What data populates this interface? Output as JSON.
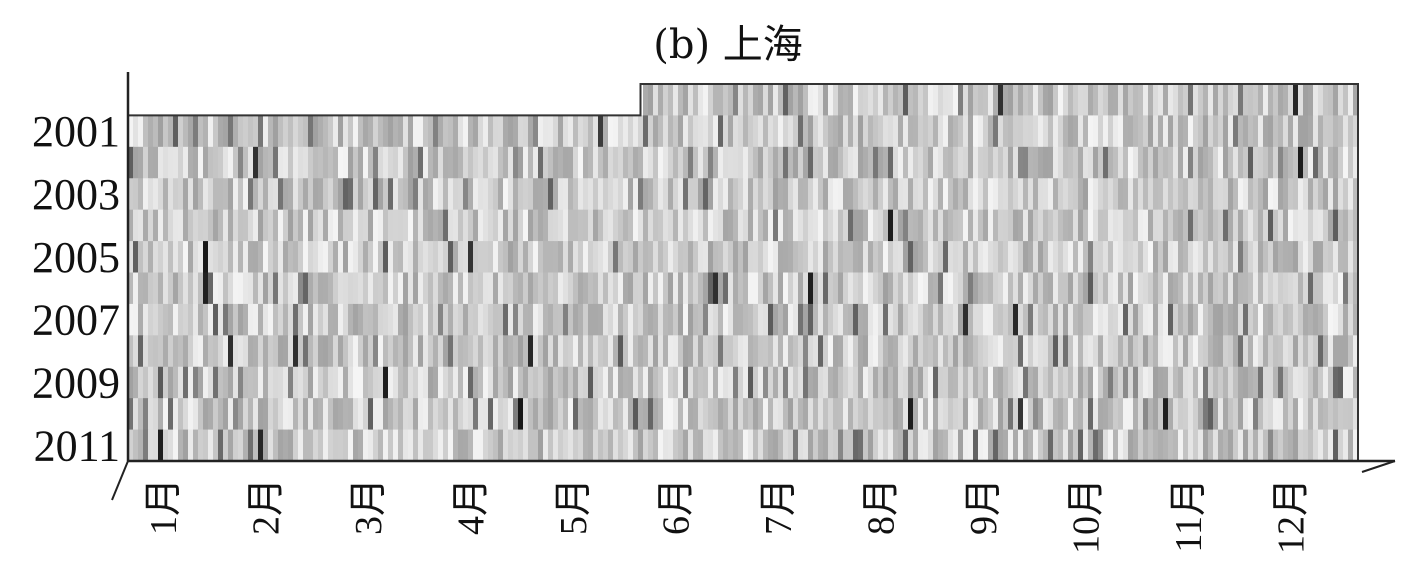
{
  "chart_data": {
    "type": "heatmap",
    "title": "(b) 上海",
    "xlabel": "",
    "ylabel": "",
    "colormap": "grayscale",
    "low_color": "#f2f2f2",
    "high_color": "#000000",
    "years": [
      "2001",
      "2002",
      "2003",
      "2004",
      "2005",
      "2006",
      "2007",
      "2008",
      "2009",
      "2010",
      "2011"
    ],
    "y_tick_labels": [
      "2001",
      "2003",
      "2005",
      "2007",
      "2009",
      "2011"
    ],
    "months": [
      "1月",
      "2月",
      "3月",
      "4月",
      "5月",
      "6月",
      "7月",
      "8月",
      "9月",
      "10月",
      "11月",
      "12月"
    ],
    "extra_top_row_start_month": "6月",
    "grid": false
  }
}
